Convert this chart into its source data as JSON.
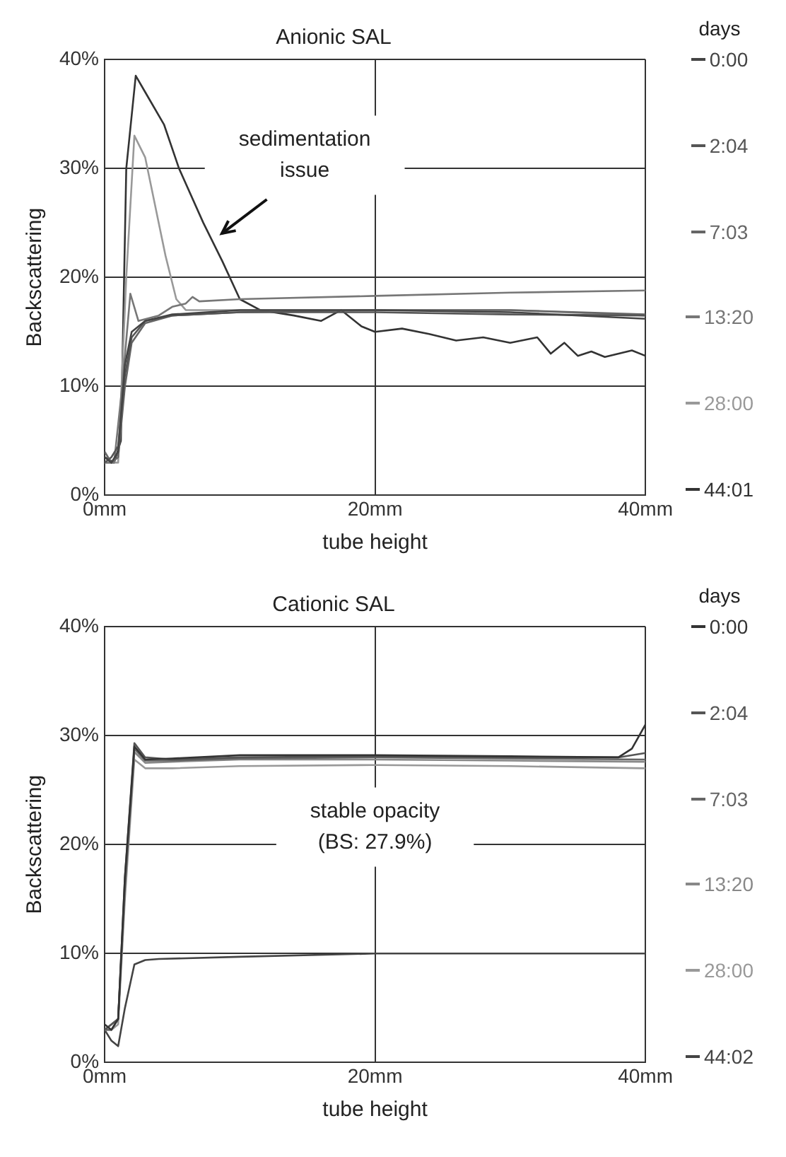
{
  "chart_data": [
    {
      "type": "line",
      "title": "Anionic SAL",
      "xlabel": "tube height",
      "ylabel": "Backscattering",
      "legend_title": "days",
      "legend": "right",
      "grid": true,
      "marker": "none",
      "xlim": [
        0,
        40
      ],
      "xticks": [
        {
          "value": 0,
          "label": "0mm"
        },
        {
          "value": 20,
          "label": "20mm"
        },
        {
          "value": 40,
          "label": "40mm"
        }
      ],
      "ylim": [
        0,
        40
      ],
      "yticks": [
        {
          "value": 0,
          "label": "0%"
        },
        {
          "value": 10,
          "label": "10%"
        },
        {
          "value": 20,
          "label": "20%"
        },
        {
          "value": 30,
          "label": "30%"
        },
        {
          "value": 40,
          "label": "40%"
        }
      ],
      "annotations": [
        "sedimentation\nissue"
      ],
      "series": [
        {
          "name": "0:00",
          "color": "#444444",
          "x": [
            0,
            0.5,
            1,
            1.5,
            2,
            3,
            5,
            10,
            20,
            30,
            40
          ],
          "values": [
            3.5,
            3,
            4,
            12,
            15,
            16,
            16.6,
            17,
            17,
            16.8,
            16.2
          ]
        },
        {
          "name": "2:04",
          "color": "#555555",
          "x": [
            0,
            0.5,
            1,
            1.5,
            2,
            3,
            5,
            10,
            20,
            30,
            40
          ],
          "values": [
            3,
            3.5,
            4.5,
            11,
            14.5,
            16,
            16.5,
            16.8,
            16.8,
            16.6,
            16.5
          ]
        },
        {
          "name": "7:03",
          "color": "#666666",
          "x": [
            0,
            0.5,
            1,
            1.5,
            2,
            3,
            5,
            10,
            20,
            30,
            40
          ],
          "values": [
            4,
            3,
            3.5,
            10,
            14,
            15.8,
            16.5,
            16.8,
            17,
            17,
            16.6
          ]
        },
        {
          "name": "13:20",
          "color": "#777777",
          "x": [
            0,
            0.7,
            1.3,
            1.9,
            2.5,
            4,
            5,
            6,
            6.5,
            7,
            10,
            20,
            30,
            40
          ],
          "values": [
            3,
            3,
            10,
            18.5,
            16,
            16.5,
            17.3,
            17.6,
            18.2,
            17.8,
            18,
            18.3,
            18.6,
            18.8
          ]
        },
        {
          "name": "28:00",
          "color": "#999999",
          "x": [
            0,
            1,
            1.6,
            2.2,
            3,
            4,
            4.5,
            5.3,
            6,
            10,
            20,
            30,
            40
          ],
          "values": [
            3,
            3,
            20,
            33,
            31,
            25,
            22,
            18,
            17,
            17,
            17,
            17,
            16.5
          ]
        },
        {
          "name": "44:01",
          "color": "#333333",
          "x": [
            0,
            0.7,
            1.2,
            1.6,
            2.3,
            3,
            4.4,
            5.5,
            7.3,
            8.7,
            10,
            11.5,
            14,
            16,
            17.5,
            19,
            20,
            22,
            24,
            26,
            28,
            30,
            32,
            33,
            34,
            35,
            36,
            37,
            39,
            40
          ],
          "values": [
            3.5,
            3,
            5,
            30,
            38.5,
            37,
            34,
            30,
            25,
            21.5,
            18,
            17,
            16.5,
            16,
            17,
            15.5,
            15,
            15.3,
            14.8,
            14.2,
            14.5,
            14,
            14.5,
            13,
            14,
            12.8,
            13.2,
            12.7,
            13.3,
            12.8
          ]
        }
      ]
    },
    {
      "type": "line",
      "title": "Cationic SAL",
      "xlabel": "tube height",
      "ylabel": "Backscattering",
      "legend_title": "days",
      "legend": "right",
      "grid": true,
      "marker": "none",
      "xlim": [
        0,
        40
      ],
      "xticks": [
        {
          "value": 0,
          "label": "0mm"
        },
        {
          "value": 20,
          "label": "20mm"
        },
        {
          "value": 40,
          "label": "40mm"
        }
      ],
      "ylim": [
        0,
        40
      ],
      "yticks": [
        {
          "value": 0,
          "label": "0%"
        },
        {
          "value": 10,
          "label": "10%"
        },
        {
          "value": 20,
          "label": "20%"
        },
        {
          "value": 30,
          "label": "30%"
        },
        {
          "value": 40,
          "label": "40%"
        }
      ],
      "annotations": [
        "stable opacity\n(BS: 27.9%)"
      ],
      "series": [
        {
          "name": "0:00",
          "color": "#333333",
          "x": [
            0,
            0.5,
            1,
            1.5,
            2.2,
            3,
            5,
            10,
            20,
            30,
            38,
            39,
            40
          ],
          "values": [
            3.5,
            3,
            4,
            17,
            29,
            27.8,
            27.9,
            28.2,
            28.2,
            28.1,
            28,
            28.8,
            31
          ]
        },
        {
          "name": "2:04",
          "color": "#555555",
          "x": [
            0,
            0.5,
            1,
            1.5,
            2.2,
            3,
            5,
            10,
            20,
            30,
            38,
            40
          ],
          "values": [
            3,
            3.5,
            4,
            17,
            29.3,
            28,
            27.8,
            28,
            28.1,
            28,
            28,
            28.4
          ]
        },
        {
          "name": "7:03",
          "color": "#666666",
          "x": [
            0,
            0.5,
            1,
            1.5,
            2.2,
            3,
            5,
            10,
            20,
            30,
            40
          ],
          "values": [
            3,
            3,
            4,
            16,
            28.8,
            27.7,
            27.7,
            27.9,
            28,
            27.9,
            27.8
          ]
        },
        {
          "name": "13:20",
          "color": "#888888",
          "x": [
            0,
            0.5,
            1,
            1.5,
            2.2,
            3,
            5,
            10,
            20,
            30,
            40
          ],
          "values": [
            3,
            3.5,
            4,
            16,
            28.5,
            27.5,
            27.6,
            27.8,
            27.8,
            27.7,
            27.6
          ]
        },
        {
          "name": "28:00",
          "color": "#999999",
          "x": [
            0,
            0.5,
            1,
            1.5,
            2.2,
            3,
            5,
            10,
            20,
            30,
            40
          ],
          "values": [
            3,
            3,
            3.5,
            15,
            27.8,
            27,
            27,
            27.2,
            27.3,
            27.2,
            27
          ]
        },
        {
          "name": "44:02",
          "color": "#444444",
          "x": [
            0,
            0.5,
            1,
            1.5,
            2.2,
            3,
            4,
            10,
            20,
            30,
            40
          ],
          "values": [
            3,
            2,
            1.5,
            5,
            9,
            9.4,
            9.5,
            9.7,
            10,
            10,
            10
          ]
        }
      ]
    }
  ]
}
